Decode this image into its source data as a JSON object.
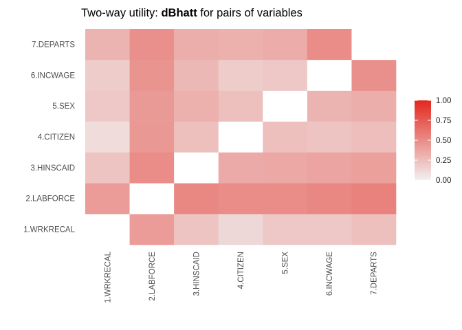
{
  "chart_data": {
    "type": "heatmap",
    "title_prefix": "Two-way utility: ",
    "title_bold": "dBhatt",
    "title_suffix": " for pairs of variables",
    "x_labels": [
      "1.WRKRECAL",
      "2.LABFORCE",
      "3.HINSCAID",
      "4.CITIZEN",
      "5.SEX",
      "6.INCWAGE",
      "7.DEPARTS"
    ],
    "y_labels": [
      "1.WRKRECAL",
      "2.LABFORCE",
      "3.HINSCAID",
      "4.CITIZEN",
      "5.SEX",
      "6.INCWAGE",
      "7.DEPARTS"
    ],
    "rows_bottom_to_top": [
      [
        null,
        0.42,
        0.22,
        0.12,
        0.2,
        0.2,
        0.24
      ],
      [
        0.42,
        null,
        0.52,
        0.5,
        0.5,
        0.52,
        0.55
      ],
      [
        0.22,
        0.5,
        null,
        0.35,
        0.36,
        0.38,
        0.4
      ],
      [
        0.1,
        0.44,
        0.24,
        null,
        0.24,
        0.22,
        0.25
      ],
      [
        0.2,
        0.43,
        0.32,
        0.24,
        null,
        0.3,
        0.33
      ],
      [
        0.18,
        0.46,
        0.28,
        0.18,
        0.2,
        null,
        0.48
      ],
      [
        0.3,
        0.48,
        0.33,
        0.32,
        0.34,
        0.5,
        null
      ]
    ],
    "legend": {
      "ticks": [
        0.0,
        0.25,
        0.5,
        0.75,
        1.0
      ],
      "tick_labels": [
        "0.00",
        "0.25",
        "0.50",
        "0.75",
        "1.00"
      ],
      "range": [
        0,
        1
      ],
      "low_color": "#f0f0f0",
      "high_color": "#e3281f",
      "placement": "right"
    },
    "na_color": "#ffffff",
    "background": "#ffffff",
    "grid": false
  }
}
